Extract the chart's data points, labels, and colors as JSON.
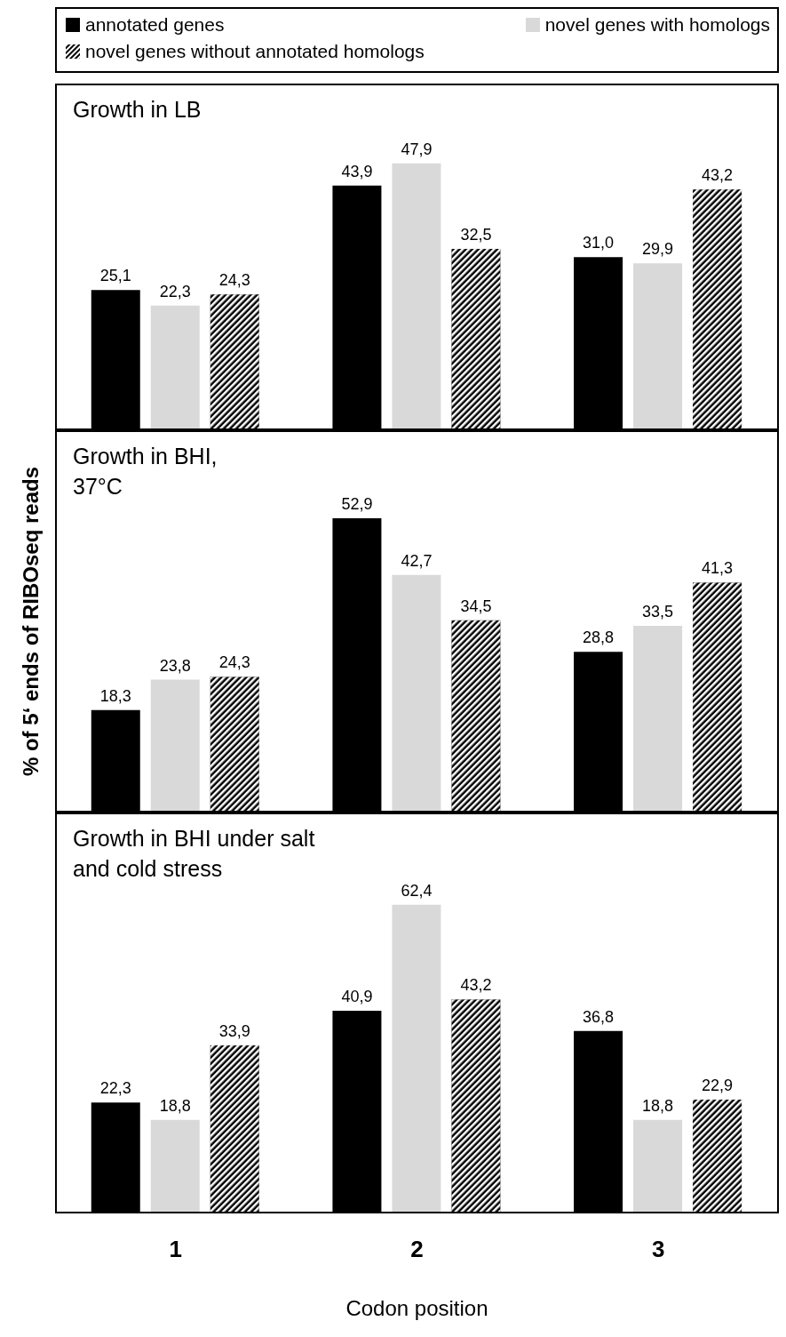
{
  "chart_data": [
    {
      "type": "bar",
      "title": "Growth in LB",
      "categories": [
        "1",
        "2",
        "3"
      ],
      "legend": "top",
      "tick_labels": false,
      "series": [
        {
          "name": "annotated genes",
          "color": "#000000",
          "values": [
            25.1,
            43.9,
            31.0
          ],
          "value_labels": [
            "25,1",
            "43,9",
            "31,0"
          ]
        },
        {
          "name": "novel genes with homologs",
          "color": "#d9d9d9",
          "values": [
            22.3,
            47.9,
            29.9
          ],
          "value_labels": [
            "22,3",
            "47,9",
            "29,9"
          ]
        },
        {
          "name": "novel genes without annotated homologs",
          "color": "#000000",
          "values": [
            24.3,
            32.5,
            43.2
          ],
          "value_labels": [
            "24,3",
            "32,5",
            "43,2"
          ]
        }
      ]
    },
    {
      "type": "bar",
      "title": "Growth in BHI,\n37°C",
      "categories": [
        "1",
        "2",
        "3"
      ],
      "ylabel": "% of 5‘ ends of RIBOseq reads",
      "tick_labels": false,
      "series": [
        {
          "color": "#000000",
          "values": [
            18.3,
            52.9,
            28.8
          ],
          "value_labels": [
            "18,3",
            "52,9",
            "28,8"
          ]
        },
        {
          "color": "#d9d9d9",
          "values": [
            23.8,
            42.7,
            33.5
          ],
          "value_labels": [
            "23,8",
            "42,7",
            "33,5"
          ]
        },
        {
          "color": "#000000",
          "values": [
            24.3,
            34.5,
            41.3
          ],
          "value_labels": [
            "24,3",
            "34,5",
            "41,3"
          ]
        }
      ]
    },
    {
      "type": "bar",
      "title": "Growth in BHI under salt\nand cold stress",
      "categories": [
        "1",
        "2",
        "3"
      ],
      "xlabel": "Codon position",
      "tick_labels": "x",
      "series": [
        {
          "color": "#000000",
          "values": [
            22.3,
            40.9,
            36.8
          ],
          "value_labels": [
            "22,3",
            "40,9",
            "36,8"
          ]
        },
        {
          "color": "#d9d9d9",
          "values": [
            18.8,
            62.4,
            18.8
          ],
          "value_labels": [
            "18,8",
            "62,4",
            "18,8"
          ]
        },
        {
          "color": "#000000",
          "values": [
            33.9,
            43.2,
            22.9
          ],
          "value_labels": [
            "33,9",
            "43,2",
            "22,9"
          ]
        }
      ]
    }
  ]
}
